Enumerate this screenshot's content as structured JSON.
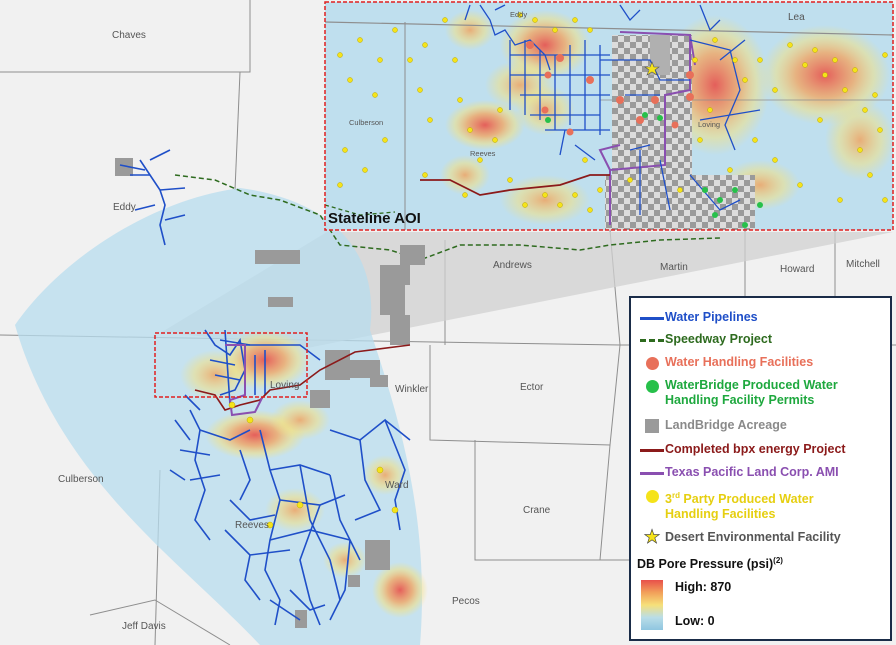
{
  "map": {
    "aoi_label": "Stateline AOI",
    "counties": [
      "Chaves",
      "Eddy",
      "Lea",
      "Andrews",
      "Martin",
      "Howard",
      "Mitchell",
      "Winkler",
      "Ector",
      "Loving",
      "Ward",
      "Culberson",
      "Reeves",
      "Crane",
      "Pecos",
      "Jeff Davis"
    ],
    "inset_labels": [
      "Eddy",
      "Lea",
      "Culberson",
      "Reeves",
      "Loving"
    ]
  },
  "legend": {
    "items": [
      {
        "label": "Water Pipelines",
        "color": "#1f4fc8",
        "symbol": "line"
      },
      {
        "label": "Speedway Project",
        "color": "#2e6b1f",
        "symbol": "dashed-line"
      },
      {
        "label": "Water Handling Facilities",
        "color": "#e8705a",
        "symbol": "dot"
      },
      {
        "label": "WaterBridge Produced Water Handling Facility Permits",
        "color": "#27c04a",
        "symbol": "dot"
      },
      {
        "label": "LandBridge Acreage",
        "color": "#8a8a8a",
        "symbol": "square"
      },
      {
        "label": "Completed bpx energy Project",
        "color": "#8b1a1a",
        "symbol": "line"
      },
      {
        "label": "Texas Pacific Land Corp. AMI",
        "color": "#8a4fb0",
        "symbol": "line"
      },
      {
        "label_pre": "3",
        "label_sup": "rd",
        "label_post": " Party Produced Water Handling Facilities",
        "color": "#f5e31a",
        "symbol": "dot"
      },
      {
        "label": "Desert Environmental Facility",
        "color": "#f5e31a",
        "symbol": "star"
      }
    ],
    "gradient_title": "DB Pore Pressure (psi)",
    "gradient_note": "(2)",
    "high_label": "High: 870",
    "low_label": "Low: 0"
  }
}
